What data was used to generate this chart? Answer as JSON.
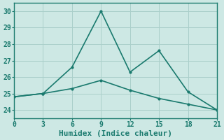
{
  "xlabel": "Humidex (Indice chaleur)",
  "line1_x": [
    0,
    3,
    6,
    9,
    12,
    15,
    18,
    21
  ],
  "line1_y": [
    24.8,
    25.0,
    26.6,
    30.0,
    26.3,
    27.6,
    25.1,
    24.0
  ],
  "line2_x": [
    0,
    3,
    6,
    9,
    12,
    15,
    18,
    21
  ],
  "line2_y": [
    24.8,
    25.0,
    25.3,
    25.8,
    25.2,
    24.7,
    24.35,
    24.0
  ],
  "line_color": "#1a7a6e",
  "bg_color": "#cde8e4",
  "grid_color": "#aacfca",
  "xlim": [
    0,
    21
  ],
  "ylim": [
    23.5,
    30.5
  ],
  "xticks": [
    0,
    3,
    6,
    9,
    12,
    15,
    18,
    21
  ],
  "yticks": [
    24,
    25,
    26,
    27,
    28,
    29,
    30
  ],
  "tick_fontsize": 7,
  "xlabel_fontsize": 8,
  "marker": ".",
  "markersize": 4,
  "linewidth": 1.2
}
